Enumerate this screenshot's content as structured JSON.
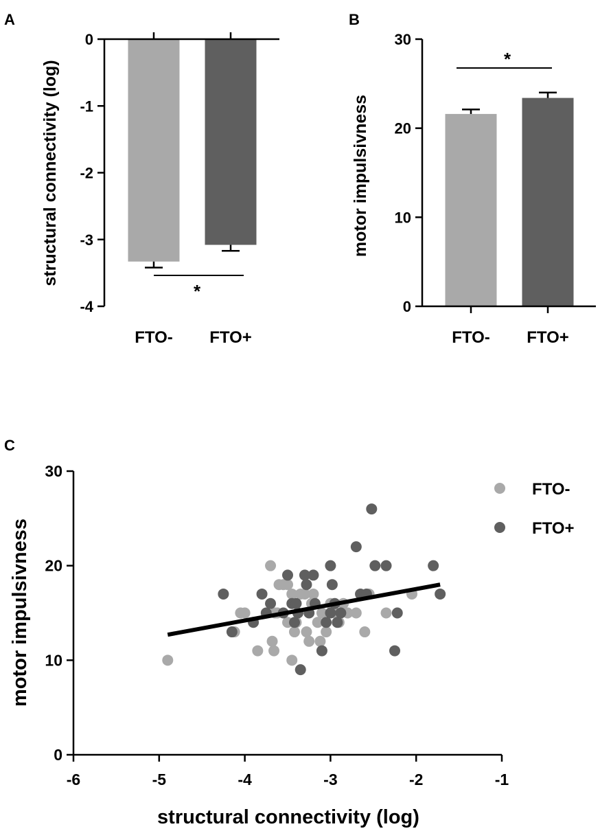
{
  "colors": {
    "fto_minus": "#a9a9a9",
    "fto_plus": "#5f5f5f",
    "fit": "#000000"
  },
  "chart_data": [
    {
      "panel": "A",
      "type": "bar",
      "ylabel": "structural connectivity (log)",
      "categories": [
        "FTO-",
        "FTO+"
      ],
      "values": [
        -3.33,
        -3.08
      ],
      "errors": [
        0.09,
        0.09
      ],
      "ylim": [
        -4,
        0
      ],
      "yticks": [
        {
          "v": 0,
          "label": "0"
        },
        {
          "v": -1,
          "label": "-1"
        },
        {
          "v": -2,
          "label": "-2"
        },
        {
          "v": -3,
          "label": "-3"
        },
        {
          "v": -4,
          "label": "-4"
        }
      ],
      "significance": "*"
    },
    {
      "panel": "B",
      "type": "bar",
      "ylabel": "motor impulsivness",
      "categories": [
        "FTO-",
        "FTO+"
      ],
      "values": [
        21.6,
        23.4
      ],
      "errors": [
        0.5,
        0.6
      ],
      "ylim": [
        0,
        30
      ],
      "yticks": [
        {
          "v": 0,
          "label": "0"
        },
        {
          "v": 10,
          "label": "10"
        },
        {
          "v": 20,
          "label": "20"
        },
        {
          "v": 30,
          "label": "30"
        }
      ],
      "significance": "*"
    },
    {
      "panel": "C",
      "type": "scatter",
      "xlabel": "structural connectivity (log)",
      "ylabel": "motor impulsivness",
      "xlim": [
        -6,
        -1
      ],
      "ylim": [
        0,
        30
      ],
      "xticks": [
        {
          "v": -6,
          "label": "-6"
        },
        {
          "v": -5,
          "label": "-5"
        },
        {
          "v": -4,
          "label": "-4"
        },
        {
          "v": -3,
          "label": "-3"
        },
        {
          "v": -2,
          "label": "-2"
        },
        {
          "v": -1,
          "label": "-1"
        }
      ],
      "yticks": [
        {
          "v": 0,
          "label": "0"
        },
        {
          "v": 10,
          "label": "10"
        },
        {
          "v": 20,
          "label": "20"
        },
        {
          "v": 30,
          "label": "30"
        }
      ],
      "legend": [
        "FTO-",
        "FTO+"
      ],
      "series": [
        {
          "name": "FTO-",
          "points": [
            [
              -4.9,
              10
            ],
            [
              -4.05,
              15
            ],
            [
              -4.0,
              15
            ],
            [
              -4.12,
              13
            ],
            [
              -3.85,
              11
            ],
            [
              -3.7,
              20
            ],
            [
              -3.68,
              12
            ],
            [
              -3.66,
              11
            ],
            [
              -3.6,
              18
            ],
            [
              -3.55,
              18
            ],
            [
              -3.62,
              15
            ],
            [
              -3.5,
              18
            ],
            [
              -3.45,
              17
            ],
            [
              -3.42,
              13
            ],
            [
              -3.4,
              14
            ],
            [
              -3.38,
              15
            ],
            [
              -3.35,
              17
            ],
            [
              -3.3,
              17
            ],
            [
              -3.28,
              13
            ],
            [
              -3.25,
              12
            ],
            [
              -3.22,
              16
            ],
            [
              -3.2,
              17
            ],
            [
              -3.15,
              14
            ],
            [
              -3.12,
              12
            ],
            [
              -3.1,
              15
            ],
            [
              -3.05,
              13
            ],
            [
              -3.0,
              16
            ],
            [
              -2.95,
              15
            ],
            [
              -2.9,
              14
            ],
            [
              -2.85,
              16
            ],
            [
              -2.8,
              15
            ],
            [
              -2.7,
              15
            ],
            [
              -2.6,
              13
            ],
            [
              -2.55,
              17
            ],
            [
              -2.35,
              15
            ],
            [
              -2.05,
              17
            ],
            [
              -3.45,
              10
            ],
            [
              -3.5,
              14
            ],
            [
              -3.65,
              15
            ]
          ]
        },
        {
          "name": "FTO+",
          "points": [
            [
              -4.25,
              17
            ],
            [
              -4.15,
              13
            ],
            [
              -3.9,
              14
            ],
            [
              -3.8,
              17
            ],
            [
              -3.75,
              15
            ],
            [
              -3.7,
              16
            ],
            [
              -3.55,
              15
            ],
            [
              -3.5,
              19
            ],
            [
              -3.45,
              16
            ],
            [
              -3.42,
              14
            ],
            [
              -3.4,
              16
            ],
            [
              -3.38,
              15
            ],
            [
              -3.35,
              9
            ],
            [
              -3.3,
              19
            ],
            [
              -3.28,
              18
            ],
            [
              -3.25,
              15
            ],
            [
              -3.2,
              19
            ],
            [
              -3.18,
              16
            ],
            [
              -3.1,
              11
            ],
            [
              -3.05,
              14
            ],
            [
              -3.0,
              20
            ],
            [
              -2.98,
              18
            ],
            [
              -2.95,
              16
            ],
            [
              -2.92,
              14
            ],
            [
              -2.88,
              15
            ],
            [
              -2.7,
              22
            ],
            [
              -2.65,
              17
            ],
            [
              -2.58,
              17
            ],
            [
              -2.52,
              26
            ],
            [
              -2.48,
              20
            ],
            [
              -2.35,
              20
            ],
            [
              -2.25,
              11
            ],
            [
              -2.22,
              15
            ],
            [
              -1.8,
              20
            ],
            [
              -1.72,
              17
            ],
            [
              -3.0,
              15
            ]
          ]
        }
      ],
      "fit_line": {
        "x": [
          -4.9,
          -1.72
        ],
        "y": [
          12.7,
          18.0
        ]
      }
    }
  ]
}
